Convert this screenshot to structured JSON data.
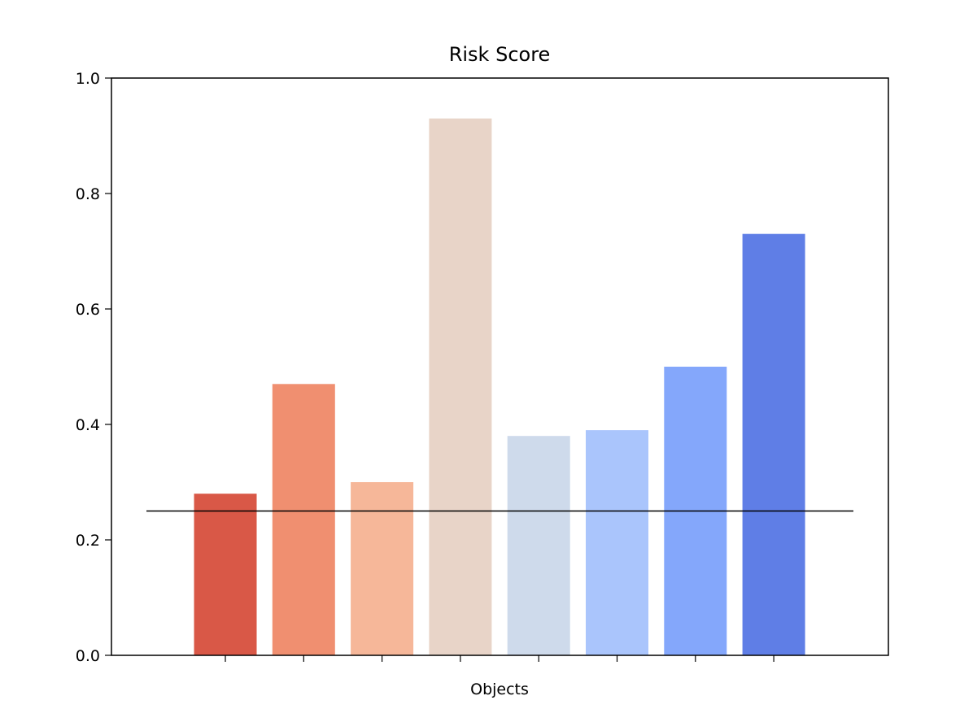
{
  "chart_data": {
    "type": "bar",
    "title": "Risk Score",
    "xlabel": "Objects",
    "ylabel": "",
    "ylim": [
      0,
      1.0
    ],
    "yticks": [
      "0.0",
      "0.2",
      "0.4",
      "0.6",
      "0.8",
      "1.0"
    ],
    "categories": [
      "",
      "",
      "",
      "",
      "",
      "",
      "",
      ""
    ],
    "values": [
      0.28,
      0.47,
      0.3,
      0.93,
      0.38,
      0.39,
      0.5,
      0.73
    ],
    "colors": [
      "#d95847",
      "#f08f70",
      "#f6b799",
      "#e8d4c8",
      "#cedaeb",
      "#aac5fc",
      "#84a7fb",
      "#5f7ee6"
    ],
    "reference_line": {
      "value": 0.25,
      "color": "#000000"
    },
    "grid": false,
    "legend": "none"
  }
}
